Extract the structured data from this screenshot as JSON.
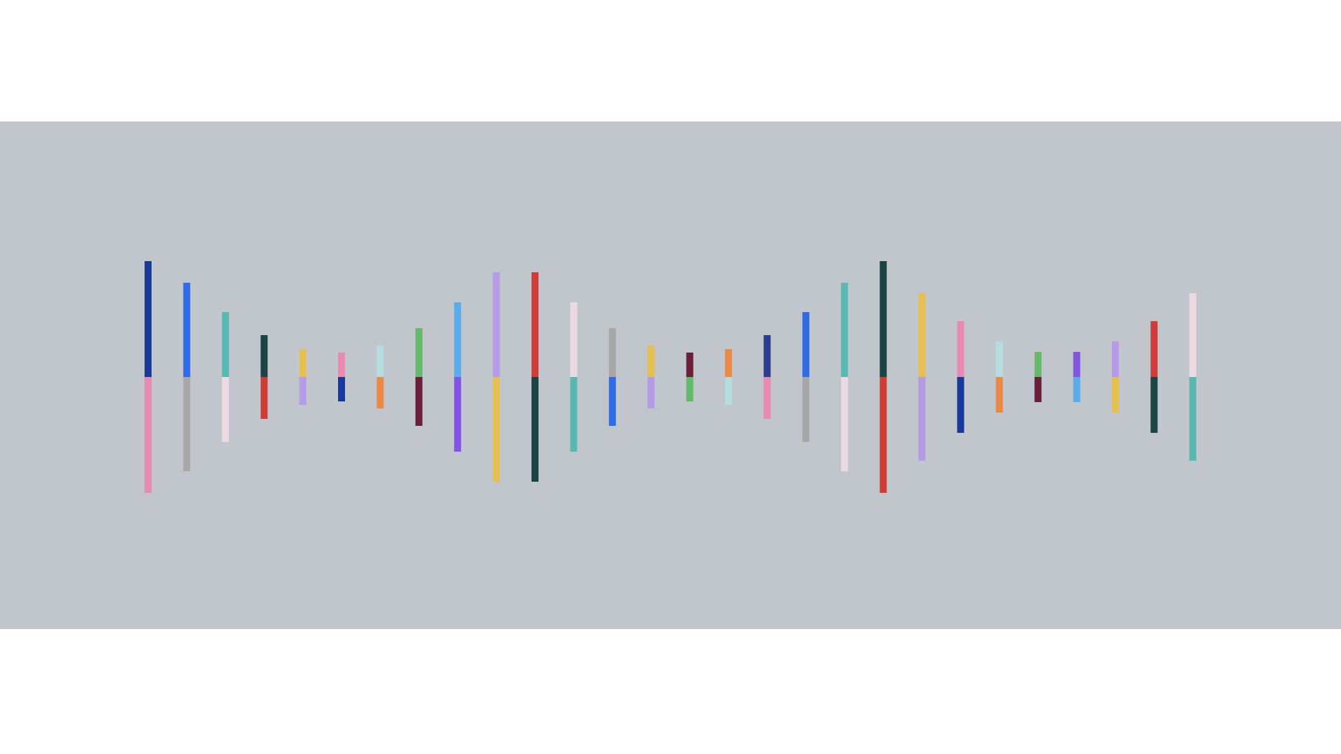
{
  "background": "#ffffff",
  "band_color": "#c1c6cc",
  "bars": [
    {
      "up": 166,
      "down": 166,
      "top_color": "#1a3a9a",
      "bottom_color": "#e98bb0"
    },
    {
      "up": 135,
      "down": 135,
      "top_color": "#2f6ce5",
      "bottom_color": "#a7a7a7"
    },
    {
      "up": 93,
      "down": 93,
      "top_color": "#59b8b1",
      "bottom_color": "#ebd9e4"
    },
    {
      "up": 60,
      "down": 60,
      "top_color": "#1c4443",
      "bottom_color": "#cf3d39"
    },
    {
      "up": 40,
      "down": 40,
      "top_color": "#e6c04f",
      "bottom_color": "#b69be8"
    },
    {
      "up": 35,
      "down": 35,
      "top_color": "#e98bb0",
      "bottom_color": "#1a3a9a"
    },
    {
      "up": 45,
      "down": 45,
      "top_color": "#b5dde0",
      "bottom_color": "#ea8a49"
    },
    {
      "up": 70,
      "down": 70,
      "top_color": "#65b96a",
      "bottom_color": "#6c1f3d"
    },
    {
      "up": 107,
      "down": 107,
      "top_color": "#5aacea",
      "bottom_color": "#8356e2"
    },
    {
      "up": 150,
      "down": 150,
      "top_color": "#b69be8",
      "bottom_color": "#e6c04f"
    },
    {
      "up": 150,
      "down": 150,
      "top_color": "#cf3d39",
      "bottom_color": "#1c4443"
    },
    {
      "up": 107,
      "down": 107,
      "top_color": "#ebd9e4",
      "bottom_color": "#59b8b1"
    },
    {
      "up": 70,
      "down": 70,
      "top_color": "#a7a7a7",
      "bottom_color": "#2f6ce5"
    },
    {
      "up": 45,
      "down": 45,
      "top_color": "#e6c04f",
      "bottom_color": "#b69be8"
    },
    {
      "up": 35,
      "down": 35,
      "top_color": "#6c1f3d",
      "bottom_color": "#65b96a"
    },
    {
      "up": 40,
      "down": 40,
      "top_color": "#ea8a49",
      "bottom_color": "#b5dde0"
    },
    {
      "up": 60,
      "down": 60,
      "top_color": "#2f3f90",
      "bottom_color": "#e98bb0"
    },
    {
      "up": 93,
      "down": 93,
      "top_color": "#2f6ce5",
      "bottom_color": "#a7a7a7"
    },
    {
      "up": 135,
      "down": 135,
      "top_color": "#59b8b1",
      "bottom_color": "#ebd9e4"
    },
    {
      "up": 166,
      "down": 166,
      "top_color": "#1c4443",
      "bottom_color": "#cf3d39"
    },
    {
      "up": 120,
      "down": 120,
      "top_color": "#e6c04f",
      "bottom_color": "#b69be8"
    },
    {
      "up": 80,
      "down": 80,
      "top_color": "#e98bb0",
      "bottom_color": "#1a3a9a"
    },
    {
      "up": 51,
      "down": 51,
      "top_color": "#b5dde0",
      "bottom_color": "#ea8a49"
    },
    {
      "up": 36,
      "down": 36,
      "top_color": "#65b96a",
      "bottom_color": "#6c1f3d"
    },
    {
      "up": 36,
      "down": 36,
      "top_color": "#8356e2",
      "bottom_color": "#5aacea"
    },
    {
      "up": 51,
      "down": 51,
      "top_color": "#b69be8",
      "bottom_color": "#e6c04f"
    },
    {
      "up": 80,
      "down": 80,
      "top_color": "#cf3d39",
      "bottom_color": "#1c4443"
    },
    {
      "up": 120,
      "down": 120,
      "top_color": "#ebd9e4",
      "bottom_color": "#59b8b1"
    }
  ]
}
